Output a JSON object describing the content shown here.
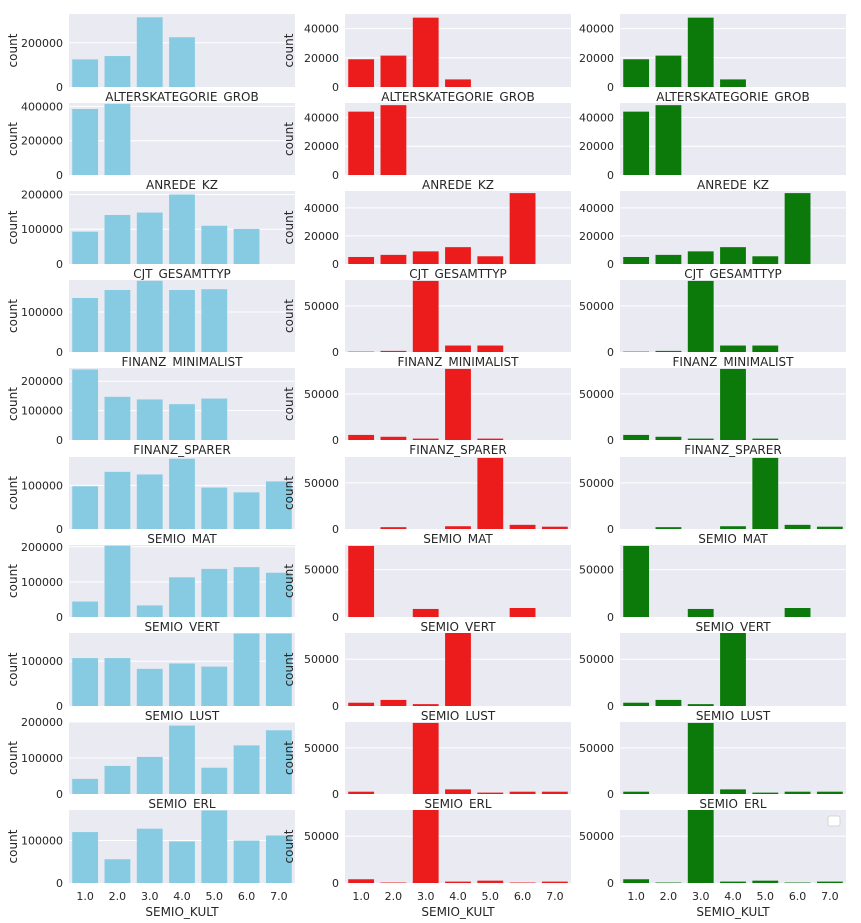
{
  "colors": {
    "col0": "#87cbe3",
    "col1": "#ec1c1c",
    "col2": "#0b7a0b",
    "background": "#eaeaf2",
    "grid": "#ffffff"
  },
  "chart_data": [
    {
      "type": "bar",
      "row": 0,
      "col": 0,
      "categories": [
        "1.0",
        "2.0",
        "3.0",
        "4.0",
        "5.0",
        "6.0",
        "7.0"
      ],
      "values": [
        125000,
        140000,
        315000,
        225000,
        0,
        0,
        0
      ],
      "xlabel": "ALTERSKATEGORIE_GROB",
      "ylabel": "count",
      "ylim": [
        0,
        330000
      ],
      "yticks": [
        0,
        200000
      ]
    },
    {
      "type": "bar",
      "row": 0,
      "col": 1,
      "categories": [
        "1.0",
        "2.0",
        "3.0",
        "4.0",
        "5.0",
        "6.0",
        "7.0"
      ],
      "values": [
        19000,
        21500,
        47500,
        5200,
        0,
        0,
        0
      ],
      "xlabel": "ALTERSKATEGORIE_GROB",
      "ylabel": "count",
      "ylim": [
        0,
        50000
      ],
      "yticks": [
        0,
        20000,
        40000
      ]
    },
    {
      "type": "bar",
      "row": 0,
      "col": 2,
      "categories": [
        "1.0",
        "2.0",
        "3.0",
        "4.0",
        "5.0",
        "6.0",
        "7.0"
      ],
      "values": [
        19000,
        21500,
        47500,
        5200,
        0,
        0,
        0
      ],
      "xlabel": "ALTERSKATEGORIE_GROB",
      "ylabel": "",
      "ylim": [
        0,
        50000
      ],
      "yticks": [
        0,
        20000,
        40000
      ]
    },
    {
      "type": "bar",
      "row": 1,
      "col": 0,
      "categories": [
        "1.0",
        "2.0",
        "3.0",
        "4.0",
        "5.0",
        "6.0",
        "7.0"
      ],
      "values": [
        385000,
        415000,
        0,
        0,
        0,
        0,
        0
      ],
      "xlabel": "ANREDE_KZ",
      "ylabel": "count",
      "ylim": [
        0,
        420000
      ],
      "yticks": [
        0,
        200000,
        400000
      ]
    },
    {
      "type": "bar",
      "row": 1,
      "col": 1,
      "categories": [
        "1.0",
        "2.0",
        "3.0",
        "4.0",
        "5.0",
        "6.0",
        "7.0"
      ],
      "values": [
        44000,
        48500,
        0,
        0,
        0,
        0,
        0
      ],
      "xlabel": "ANREDE_KZ",
      "ylabel": "count",
      "ylim": [
        0,
        50000
      ],
      "yticks": [
        0,
        20000,
        40000
      ]
    },
    {
      "type": "bar",
      "row": 1,
      "col": 2,
      "categories": [
        "1.0",
        "2.0",
        "3.0",
        "4.0",
        "5.0",
        "6.0",
        "7.0"
      ],
      "values": [
        44000,
        48500,
        0,
        0,
        0,
        0,
        0
      ],
      "xlabel": "ANREDE_KZ",
      "ylabel": "",
      "ylim": [
        0,
        50000
      ],
      "yticks": [
        0,
        20000,
        40000
      ]
    },
    {
      "type": "bar",
      "row": 2,
      "col": 0,
      "categories": [
        "1.0",
        "2.0",
        "3.0",
        "4.0",
        "5.0",
        "6.0",
        "7.0"
      ],
      "values": [
        93000,
        141000,
        148000,
        200000,
        110000,
        101000,
        0
      ],
      "xlabel": "CJT_GESAMTTYP",
      "ylabel": "count",
      "ylim": [
        0,
        210000
      ],
      "yticks": [
        0,
        100000,
        200000
      ]
    },
    {
      "type": "bar",
      "row": 2,
      "col": 1,
      "categories": [
        "1.0",
        "2.0",
        "3.0",
        "4.0",
        "5.0",
        "6.0",
        "7.0"
      ],
      "values": [
        5000,
        6500,
        9000,
        12000,
        5500,
        50500,
        0
      ],
      "xlabel": "CJT_GESAMTTYP",
      "ylabel": "count",
      "ylim": [
        0,
        52000
      ],
      "yticks": [
        0,
        20000,
        40000
      ]
    },
    {
      "type": "bar",
      "row": 2,
      "col": 2,
      "categories": [
        "1.0",
        "2.0",
        "3.0",
        "4.0",
        "5.0",
        "6.0",
        "7.0"
      ],
      "values": [
        5000,
        6500,
        9000,
        12000,
        5500,
        50500,
        0
      ],
      "xlabel": "CJT_GESAMTTYP",
      "ylabel": "",
      "ylim": [
        0,
        52000
      ],
      "yticks": [
        0,
        20000,
        40000
      ]
    },
    {
      "type": "bar",
      "row": 3,
      "col": 0,
      "categories": [
        "1.0",
        "2.0",
        "3.0",
        "4.0",
        "5.0",
        "6.0",
        "7.0"
      ],
      "values": [
        135000,
        155000,
        178000,
        155000,
        157000,
        0,
        0
      ],
      "xlabel": "FINANZ_MINIMALIST",
      "ylabel": "count",
      "ylim": [
        0,
        180000
      ],
      "yticks": [
        0,
        100000
      ]
    },
    {
      "type": "bar",
      "row": 3,
      "col": 1,
      "categories": [
        "1.0",
        "2.0",
        "3.0",
        "4.0",
        "5.0",
        "6.0",
        "7.0"
      ],
      "values": [
        400,
        1200,
        77000,
        7000,
        7000,
        0,
        0
      ],
      "xlabel": "FINANZ_MINIMALIST",
      "ylabel": "count",
      "ylim": [
        0,
        78000
      ],
      "yticks": [
        0,
        50000
      ]
    },
    {
      "type": "bar",
      "row": 3,
      "col": 2,
      "categories": [
        "1.0",
        "2.0",
        "3.0",
        "4.0",
        "5.0",
        "6.0",
        "7.0"
      ],
      "values": [
        400,
        1200,
        77000,
        7000,
        7000,
        0,
        0
      ],
      "xlabel": "FINANZ_MINIMALIST",
      "ylabel": "",
      "ylim": [
        0,
        78000
      ],
      "yticks": [
        0,
        50000
      ]
    },
    {
      "type": "bar",
      "row": 4,
      "col": 0,
      "categories": [
        "1.0",
        "2.0",
        "3.0",
        "4.0",
        "5.0",
        "6.0",
        "7.0"
      ],
      "values": [
        240000,
        147000,
        138000,
        122000,
        141000,
        0,
        0
      ],
      "xlabel": "FINANZ_SPARER",
      "ylabel": "count",
      "ylim": [
        0,
        245000
      ],
      "yticks": [
        0,
        100000,
        200000
      ]
    },
    {
      "type": "bar",
      "row": 4,
      "col": 1,
      "categories": [
        "1.0",
        "2.0",
        "3.0",
        "4.0",
        "5.0",
        "6.0",
        "7.0"
      ],
      "values": [
        5500,
        3500,
        1500,
        77000,
        1500,
        0,
        0
      ],
      "xlabel": "FINANZ_SPARER",
      "ylabel": "count",
      "ylim": [
        0,
        78000
      ],
      "yticks": [
        0,
        50000
      ]
    },
    {
      "type": "bar",
      "row": 4,
      "col": 2,
      "categories": [
        "1.0",
        "2.0",
        "3.0",
        "4.0",
        "5.0",
        "6.0",
        "7.0"
      ],
      "values": [
        5500,
        3500,
        1500,
        77000,
        1500,
        0,
        0
      ],
      "xlabel": "FINANZ_SPARER",
      "ylabel": "",
      "ylim": [
        0,
        78000
      ],
      "yticks": [
        0,
        50000
      ]
    },
    {
      "type": "bar",
      "row": 5,
      "col": 0,
      "categories": [
        "1.0",
        "2.0",
        "3.0",
        "4.0",
        "5.0",
        "6.0",
        "7.0"
      ],
      "values": [
        98000,
        131000,
        125000,
        161000,
        95000,
        84000,
        109000
      ],
      "xlabel": "SEMIO_MAT",
      "ylabel": "count",
      "ylim": [
        0,
        165000
      ],
      "yticks": [
        0,
        100000
      ]
    },
    {
      "type": "bar",
      "row": 5,
      "col": 1,
      "categories": [
        "1.0",
        "2.0",
        "3.0",
        "4.0",
        "5.0",
        "6.0",
        "7.0"
      ],
      "values": [
        0,
        2000,
        0,
        3000,
        77000,
        4500,
        2500
      ],
      "xlabel": "SEMIO_MAT",
      "ylabel": "count",
      "ylim": [
        0,
        78000
      ],
      "yticks": [
        0,
        50000
      ]
    },
    {
      "type": "bar",
      "row": 5,
      "col": 2,
      "categories": [
        "1.0",
        "2.0",
        "3.0",
        "4.0",
        "5.0",
        "6.0",
        "7.0"
      ],
      "values": [
        0,
        2000,
        0,
        3000,
        77000,
        4500,
        2500
      ],
      "xlabel": "SEMIO_MAT",
      "ylabel": "",
      "ylim": [
        0,
        78000
      ],
      "yticks": [
        0,
        50000
      ]
    },
    {
      "type": "bar",
      "row": 6,
      "col": 0,
      "categories": [
        "1.0",
        "2.0",
        "3.0",
        "4.0",
        "5.0",
        "6.0",
        "7.0"
      ],
      "values": [
        44000,
        203000,
        33000,
        113000,
        137000,
        142000,
        126000
      ],
      "xlabel": "SEMIO_VERT",
      "ylabel": "count",
      "ylim": [
        0,
        205000
      ],
      "yticks": [
        0,
        100000,
        200000
      ]
    },
    {
      "type": "bar",
      "row": 6,
      "col": 1,
      "categories": [
        "1.0",
        "2.0",
        "3.0",
        "4.0",
        "5.0",
        "6.0",
        "7.0"
      ],
      "values": [
        75000,
        0,
        8500,
        0,
        0,
        9500,
        0
      ],
      "xlabel": "SEMIO_VERT",
      "ylabel": "count",
      "ylim": [
        0,
        76000
      ],
      "yticks": [
        0,
        50000
      ]
    },
    {
      "type": "bar",
      "row": 6,
      "col": 2,
      "categories": [
        "1.0",
        "2.0",
        "3.0",
        "4.0",
        "5.0",
        "6.0",
        "7.0"
      ],
      "values": [
        75000,
        0,
        8500,
        0,
        0,
        9500,
        0
      ],
      "xlabel": "SEMIO_VERT",
      "ylabel": "",
      "ylim": [
        0,
        76000
      ],
      "yticks": [
        0,
        50000
      ]
    },
    {
      "type": "bar",
      "row": 7,
      "col": 0,
      "categories": [
        "1.0",
        "2.0",
        "3.0",
        "4.0",
        "5.0",
        "6.0",
        "7.0"
      ],
      "values": [
        107000,
        107000,
        83000,
        95000,
        88000,
        162000,
        162000
      ],
      "xlabel": "SEMIO_LUST",
      "ylabel": "count",
      "ylim": [
        0,
        163000
      ],
      "yticks": [
        0,
        100000
      ]
    },
    {
      "type": "bar",
      "row": 7,
      "col": 1,
      "categories": [
        "1.0",
        "2.0",
        "3.0",
        "4.0",
        "5.0",
        "6.0",
        "7.0"
      ],
      "values": [
        3500,
        6500,
        2000,
        78000,
        0,
        0,
        0
      ],
      "xlabel": "SEMIO_LUST",
      "ylabel": "count",
      "ylim": [
        0,
        78000
      ],
      "yticks": [
        0,
        50000
      ]
    },
    {
      "type": "bar",
      "row": 7,
      "col": 2,
      "categories": [
        "1.0",
        "2.0",
        "3.0",
        "4.0",
        "5.0",
        "6.0",
        "7.0"
      ],
      "values": [
        3500,
        6500,
        2000,
        78000,
        0,
        0,
        0
      ],
      "xlabel": "SEMIO_LUST",
      "ylabel": "",
      "ylim": [
        0,
        78000
      ],
      "yticks": [
        0,
        50000
      ]
    },
    {
      "type": "bar",
      "row": 8,
      "col": 0,
      "categories": [
        "1.0",
        "2.0",
        "3.0",
        "4.0",
        "5.0",
        "6.0",
        "7.0"
      ],
      "values": [
        42000,
        78000,
        103000,
        190000,
        73000,
        135000,
        177000
      ],
      "xlabel": "SEMIO_ERL",
      "ylabel": "count",
      "ylim": [
        0,
        200000
      ],
      "yticks": [
        0,
        100000,
        200000
      ]
    },
    {
      "type": "bar",
      "row": 8,
      "col": 1,
      "categories": [
        "1.0",
        "2.0",
        "3.0",
        "4.0",
        "5.0",
        "6.0",
        "7.0"
      ],
      "values": [
        2500,
        0,
        77000,
        5000,
        1500,
        2500,
        2500
      ],
      "xlabel": "SEMIO_ERL",
      "ylabel": "count",
      "ylim": [
        0,
        78000
      ],
      "yticks": [
        0,
        50000
      ]
    },
    {
      "type": "bar",
      "row": 8,
      "col": 2,
      "categories": [
        "1.0",
        "2.0",
        "3.0",
        "4.0",
        "5.0",
        "6.0",
        "7.0"
      ],
      "values": [
        2500,
        0,
        77000,
        5000,
        1500,
        2500,
        2500
      ],
      "xlabel": "SEMIO_ERL",
      "ylabel": "",
      "ylim": [
        0,
        78000
      ],
      "yticks": [
        0,
        50000
      ]
    },
    {
      "type": "bar",
      "row": 9,
      "col": 0,
      "categories": [
        "1.0",
        "2.0",
        "3.0",
        "4.0",
        "5.0",
        "6.0",
        "7.0"
      ],
      "values": [
        120000,
        56000,
        128000,
        98000,
        171000,
        100000,
        112000
      ],
      "xlabel": "SEMIO_KULT",
      "ylabel": "count",
      "ylim": [
        0,
        172000
      ],
      "yticks": [
        0,
        100000
      ],
      "show_xticks": true
    },
    {
      "type": "bar",
      "row": 9,
      "col": 1,
      "categories": [
        "1.0",
        "2.0",
        "3.0",
        "4.0",
        "5.0",
        "6.0",
        "7.0"
      ],
      "values": [
        4000,
        500,
        78000,
        1500,
        2500,
        500,
        1500
      ],
      "xlabel": "SEMIO_KULT",
      "ylabel": "count",
      "ylim": [
        0,
        78000
      ],
      "yticks": [
        0,
        50000
      ],
      "show_xticks": true
    },
    {
      "type": "bar",
      "row": 9,
      "col": 2,
      "categories": [
        "1.0",
        "2.0",
        "3.0",
        "4.0",
        "5.0",
        "6.0",
        "7.0"
      ],
      "values": [
        4000,
        500,
        78000,
        1500,
        2500,
        500,
        1500
      ],
      "xlabel": "SEMIO_KULT",
      "ylabel": "",
      "ylim": [
        0,
        78000
      ],
      "yticks": [
        0,
        50000
      ],
      "show_xticks": true,
      "legend": "top-right"
    }
  ]
}
